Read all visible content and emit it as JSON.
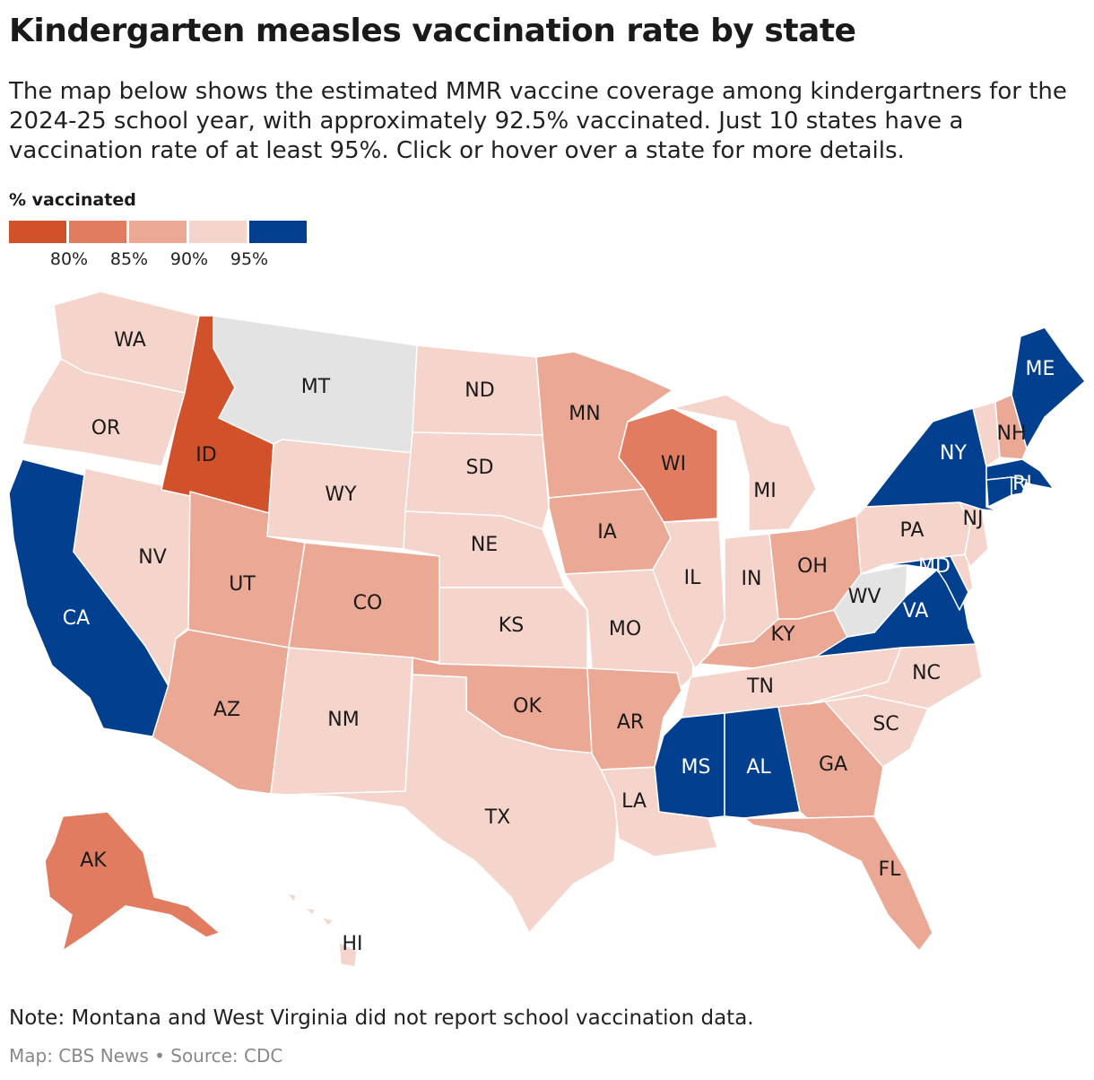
{
  "header": {
    "title": "Kindergarten measles vaccination rate by state",
    "subtitle": "The map below shows the estimated MMR vaccine coverage among kindergartners for the 2024-25 school year, with approximately 92.5% vaccinated. Just 10 states have a vaccination rate of at least 95%. Click or hover over a state for more details."
  },
  "legend": {
    "title": "% vaccinated",
    "swatches": [
      "#d0512a",
      "#e17c60",
      "#eaa895",
      "#f5d4cb",
      "#02408f"
    ],
    "ticks": [
      "80%",
      "85%",
      "90%",
      "95%"
    ]
  },
  "colors": {
    "below_80": "#d0512a",
    "80_to_85": "#e17c60",
    "85_to_90": "#eaa895",
    "90_to_95": "#f5d4cb",
    "95_plus": "#02408f",
    "no_data": "#e3e3e3"
  },
  "states": [
    {
      "abbr": "WA",
      "bin": "90_to_95"
    },
    {
      "abbr": "OR",
      "bin": "90_to_95"
    },
    {
      "abbr": "CA",
      "bin": "95_plus"
    },
    {
      "abbr": "NV",
      "bin": "90_to_95"
    },
    {
      "abbr": "ID",
      "bin": "below_80"
    },
    {
      "abbr": "MT",
      "bin": "no_data"
    },
    {
      "abbr": "WY",
      "bin": "90_to_95"
    },
    {
      "abbr": "UT",
      "bin": "85_to_90"
    },
    {
      "abbr": "AZ",
      "bin": "85_to_90"
    },
    {
      "abbr": "CO",
      "bin": "85_to_90"
    },
    {
      "abbr": "NM",
      "bin": "90_to_95"
    },
    {
      "abbr": "ND",
      "bin": "90_to_95"
    },
    {
      "abbr": "SD",
      "bin": "90_to_95"
    },
    {
      "abbr": "NE",
      "bin": "90_to_95"
    },
    {
      "abbr": "KS",
      "bin": "90_to_95"
    },
    {
      "abbr": "OK",
      "bin": "85_to_90"
    },
    {
      "abbr": "TX",
      "bin": "90_to_95"
    },
    {
      "abbr": "MN",
      "bin": "85_to_90"
    },
    {
      "abbr": "IA",
      "bin": "85_to_90"
    },
    {
      "abbr": "MO",
      "bin": "90_to_95"
    },
    {
      "abbr": "AR",
      "bin": "85_to_90"
    },
    {
      "abbr": "LA",
      "bin": "90_to_95"
    },
    {
      "abbr": "WI",
      "bin": "80_to_85"
    },
    {
      "abbr": "IL",
      "bin": "90_to_95"
    },
    {
      "abbr": "MI",
      "bin": "90_to_95"
    },
    {
      "abbr": "IN",
      "bin": "90_to_95"
    },
    {
      "abbr": "OH",
      "bin": "85_to_90"
    },
    {
      "abbr": "KY",
      "bin": "85_to_90"
    },
    {
      "abbr": "TN",
      "bin": "90_to_95"
    },
    {
      "abbr": "MS",
      "bin": "95_plus"
    },
    {
      "abbr": "AL",
      "bin": "95_plus"
    },
    {
      "abbr": "GA",
      "bin": "85_to_90"
    },
    {
      "abbr": "FL",
      "bin": "85_to_90"
    },
    {
      "abbr": "SC",
      "bin": "90_to_95"
    },
    {
      "abbr": "NC",
      "bin": "90_to_95"
    },
    {
      "abbr": "VA",
      "bin": "95_plus"
    },
    {
      "abbr": "WV",
      "bin": "no_data"
    },
    {
      "abbr": "MD",
      "bin": "95_plus"
    },
    {
      "abbr": "PA",
      "bin": "90_to_95"
    },
    {
      "abbr": "NJ",
      "bin": "90_to_95"
    },
    {
      "abbr": "NY",
      "bin": "95_plus"
    },
    {
      "abbr": "MA",
      "bin": "95_plus"
    },
    {
      "abbr": "RI",
      "bin": "95_plus"
    },
    {
      "abbr": "CT",
      "bin": "95_plus"
    },
    {
      "abbr": "DE",
      "bin": "90_to_95"
    },
    {
      "abbr": "VT",
      "bin": "90_to_95"
    },
    {
      "abbr": "NH",
      "bin": "85_to_90"
    },
    {
      "abbr": "ME",
      "bin": "95_plus"
    },
    {
      "abbr": "AK",
      "bin": "80_to_85"
    },
    {
      "abbr": "HI",
      "bin": "90_to_95"
    }
  ],
  "footer": {
    "note": "Note: Montana and West Virginia did not report school vaccination data.",
    "credit": "Map: CBS News • Source: CDC"
  }
}
